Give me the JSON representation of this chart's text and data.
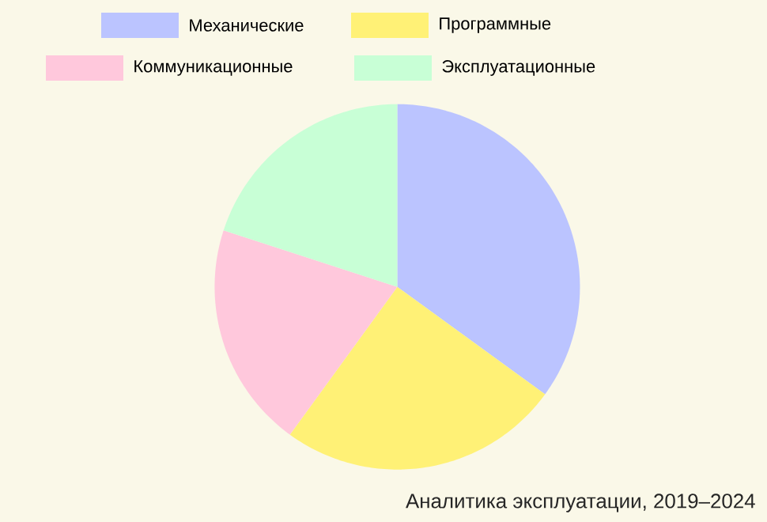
{
  "chart_data": {
    "type": "pie",
    "categories": [
      "Механические",
      "Программные",
      "Коммуникационные",
      "Эксплуатационные"
    ],
    "values": [
      35,
      25,
      20,
      20
    ],
    "colors": [
      "#bbc4ff",
      "#fff176",
      "#ffc8dc",
      "#c8ffd6"
    ],
    "legend": "top",
    "annotations": [
      "Аналитика эксплуатации, 2019–2024"
    ]
  }
}
